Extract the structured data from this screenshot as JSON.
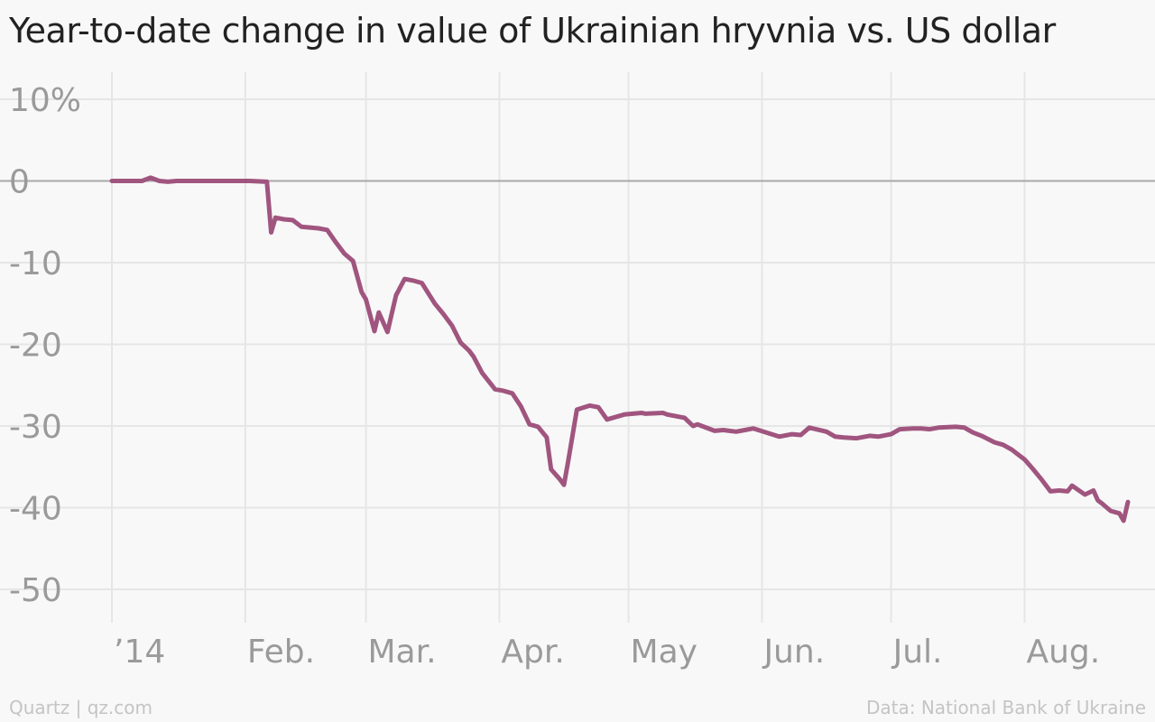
{
  "chart_data": {
    "type": "line",
    "title": "Year-to-date change in value of Ukrainian hryvnia vs. US dollar",
    "xlabel": "",
    "ylabel": "",
    "x_domain": [
      "2014-01-01",
      "2014-08-25"
    ],
    "xlim": [
      "2014-01-01",
      "2014-08-25"
    ],
    "ylim": [
      -55,
      10
    ],
    "y_ticks": [
      10,
      0,
      -10,
      -20,
      -30,
      -40,
      -50
    ],
    "y_tick_labels": [
      "10%",
      "0",
      "-10",
      "-20",
      "-30",
      "-40",
      "-50"
    ],
    "x_ticks": [
      "2014-01-01",
      "2014-02-01",
      "2014-03-01",
      "2014-04-01",
      "2014-05-01",
      "2014-06-01",
      "2014-07-01",
      "2014-08-01"
    ],
    "x_tick_labels": [
      "’14",
      "Feb.",
      "Mar.",
      "Apr.",
      "May",
      "Jun.",
      "Jul.",
      "Aug."
    ],
    "grid": true,
    "zero_line": true,
    "line_color": "#a0557f",
    "series": [
      {
        "x": [
          "2014-01-01",
          "2014-01-05",
          "2014-01-08",
          "2014-01-10",
          "2014-01-12",
          "2014-01-14",
          "2014-01-16",
          "2014-01-20",
          "2014-01-25",
          "2014-01-30",
          "2014-02-02",
          "2014-02-06",
          "2014-02-07",
          "2014-02-08",
          "2014-02-10",
          "2014-02-12",
          "2014-02-14",
          "2014-02-16",
          "2014-02-18",
          "2014-02-20",
          "2014-02-22",
          "2014-02-24",
          "2014-02-26",
          "2014-02-28",
          "2014-03-01",
          "2014-03-03",
          "2014-03-04",
          "2014-03-06",
          "2014-03-08",
          "2014-03-10",
          "2014-03-12",
          "2014-03-14",
          "2014-03-17",
          "2014-03-19",
          "2014-03-21",
          "2014-03-23",
          "2014-03-25",
          "2014-03-26",
          "2014-03-28",
          "2014-03-31",
          "2014-04-02",
          "2014-04-04",
          "2014-04-06",
          "2014-04-08",
          "2014-04-10",
          "2014-04-12",
          "2014-04-13",
          "2014-04-15",
          "2014-04-16",
          "2014-04-17",
          "2014-04-19",
          "2014-04-22",
          "2014-04-23",
          "2014-04-24",
          "2014-04-26",
          "2014-04-30",
          "2014-05-04",
          "2014-05-05",
          "2014-05-09",
          "2014-05-10",
          "2014-05-14",
          "2014-05-16",
          "2014-05-17",
          "2014-05-18",
          "2014-05-21",
          "2014-05-23",
          "2014-05-26",
          "2014-05-28",
          "2014-05-30",
          "2014-06-02",
          "2014-06-05",
          "2014-06-08",
          "2014-06-10",
          "2014-06-12",
          "2014-06-16",
          "2014-06-18",
          "2014-06-20",
          "2014-06-23",
          "2014-06-26",
          "2014-06-28",
          "2014-07-01",
          "2014-07-03",
          "2014-07-06",
          "2014-07-08",
          "2014-07-10",
          "2014-07-12",
          "2014-07-16",
          "2014-07-18",
          "2014-07-20",
          "2014-07-22",
          "2014-07-25",
          "2014-07-27",
          "2014-07-29",
          "2014-07-31",
          "2014-08-01",
          "2014-08-03",
          "2014-08-05",
          "2014-08-07",
          "2014-08-09",
          "2014-08-11",
          "2014-08-12",
          "2014-08-15",
          "2014-08-17",
          "2014-08-18",
          "2014-08-19",
          "2014-08-21",
          "2014-08-23",
          "2014-08-24",
          "2014-08-25"
        ],
        "values": [
          0,
          0,
          0,
          0.4,
          0,
          -0.1,
          0,
          0,
          0,
          0,
          0,
          -0.1,
          -6.3,
          -4.5,
          -4.7,
          -4.8,
          -5.6,
          -5.7,
          -5.8,
          -6.0,
          -7.5,
          -8.9,
          -9.8,
          -13.6,
          -14.5,
          -18.4,
          -16.1,
          -18.5,
          -14.0,
          -12.0,
          -12.2,
          -12.5,
          -15.0,
          -16.3,
          -17.7,
          -19.8,
          -20.8,
          -21.5,
          -23.5,
          -25.5,
          -25.7,
          -26.0,
          -27.6,
          -29.8,
          -30.1,
          -31.4,
          -35.3,
          -36.5,
          -37.2,
          -34.3,
          -28.0,
          -27.5,
          -27.6,
          -27.7,
          -29.2,
          -28.6,
          -28.4,
          -28.5,
          -28.4,
          -28.6,
          -29.0,
          -30.0,
          -29.8,
          -30.0,
          -30.6,
          -30.5,
          -30.7,
          -30.5,
          -30.3,
          -30.8,
          -31.3,
          -31.0,
          -31.1,
          -30.2,
          -30.7,
          -31.3,
          -31.4,
          -31.5,
          -31.2,
          -31.3,
          -31.0,
          -30.4,
          -30.3,
          -30.3,
          -30.4,
          -30.2,
          -30.1,
          -30.2,
          -30.8,
          -31.2,
          -32.0,
          -32.3,
          -32.9,
          -33.7,
          -34.1,
          -35.3,
          -36.6,
          -38.0,
          -37.9,
          -38.0,
          -37.3,
          -38.4,
          -37.9,
          -39.1,
          -39.5,
          -40.4,
          -40.7,
          -41.6,
          -39.3
        ]
      }
    ]
  },
  "footer": {
    "left": "Quartz | qz.com",
    "right": "Data: National Bank of Ukraine"
  }
}
